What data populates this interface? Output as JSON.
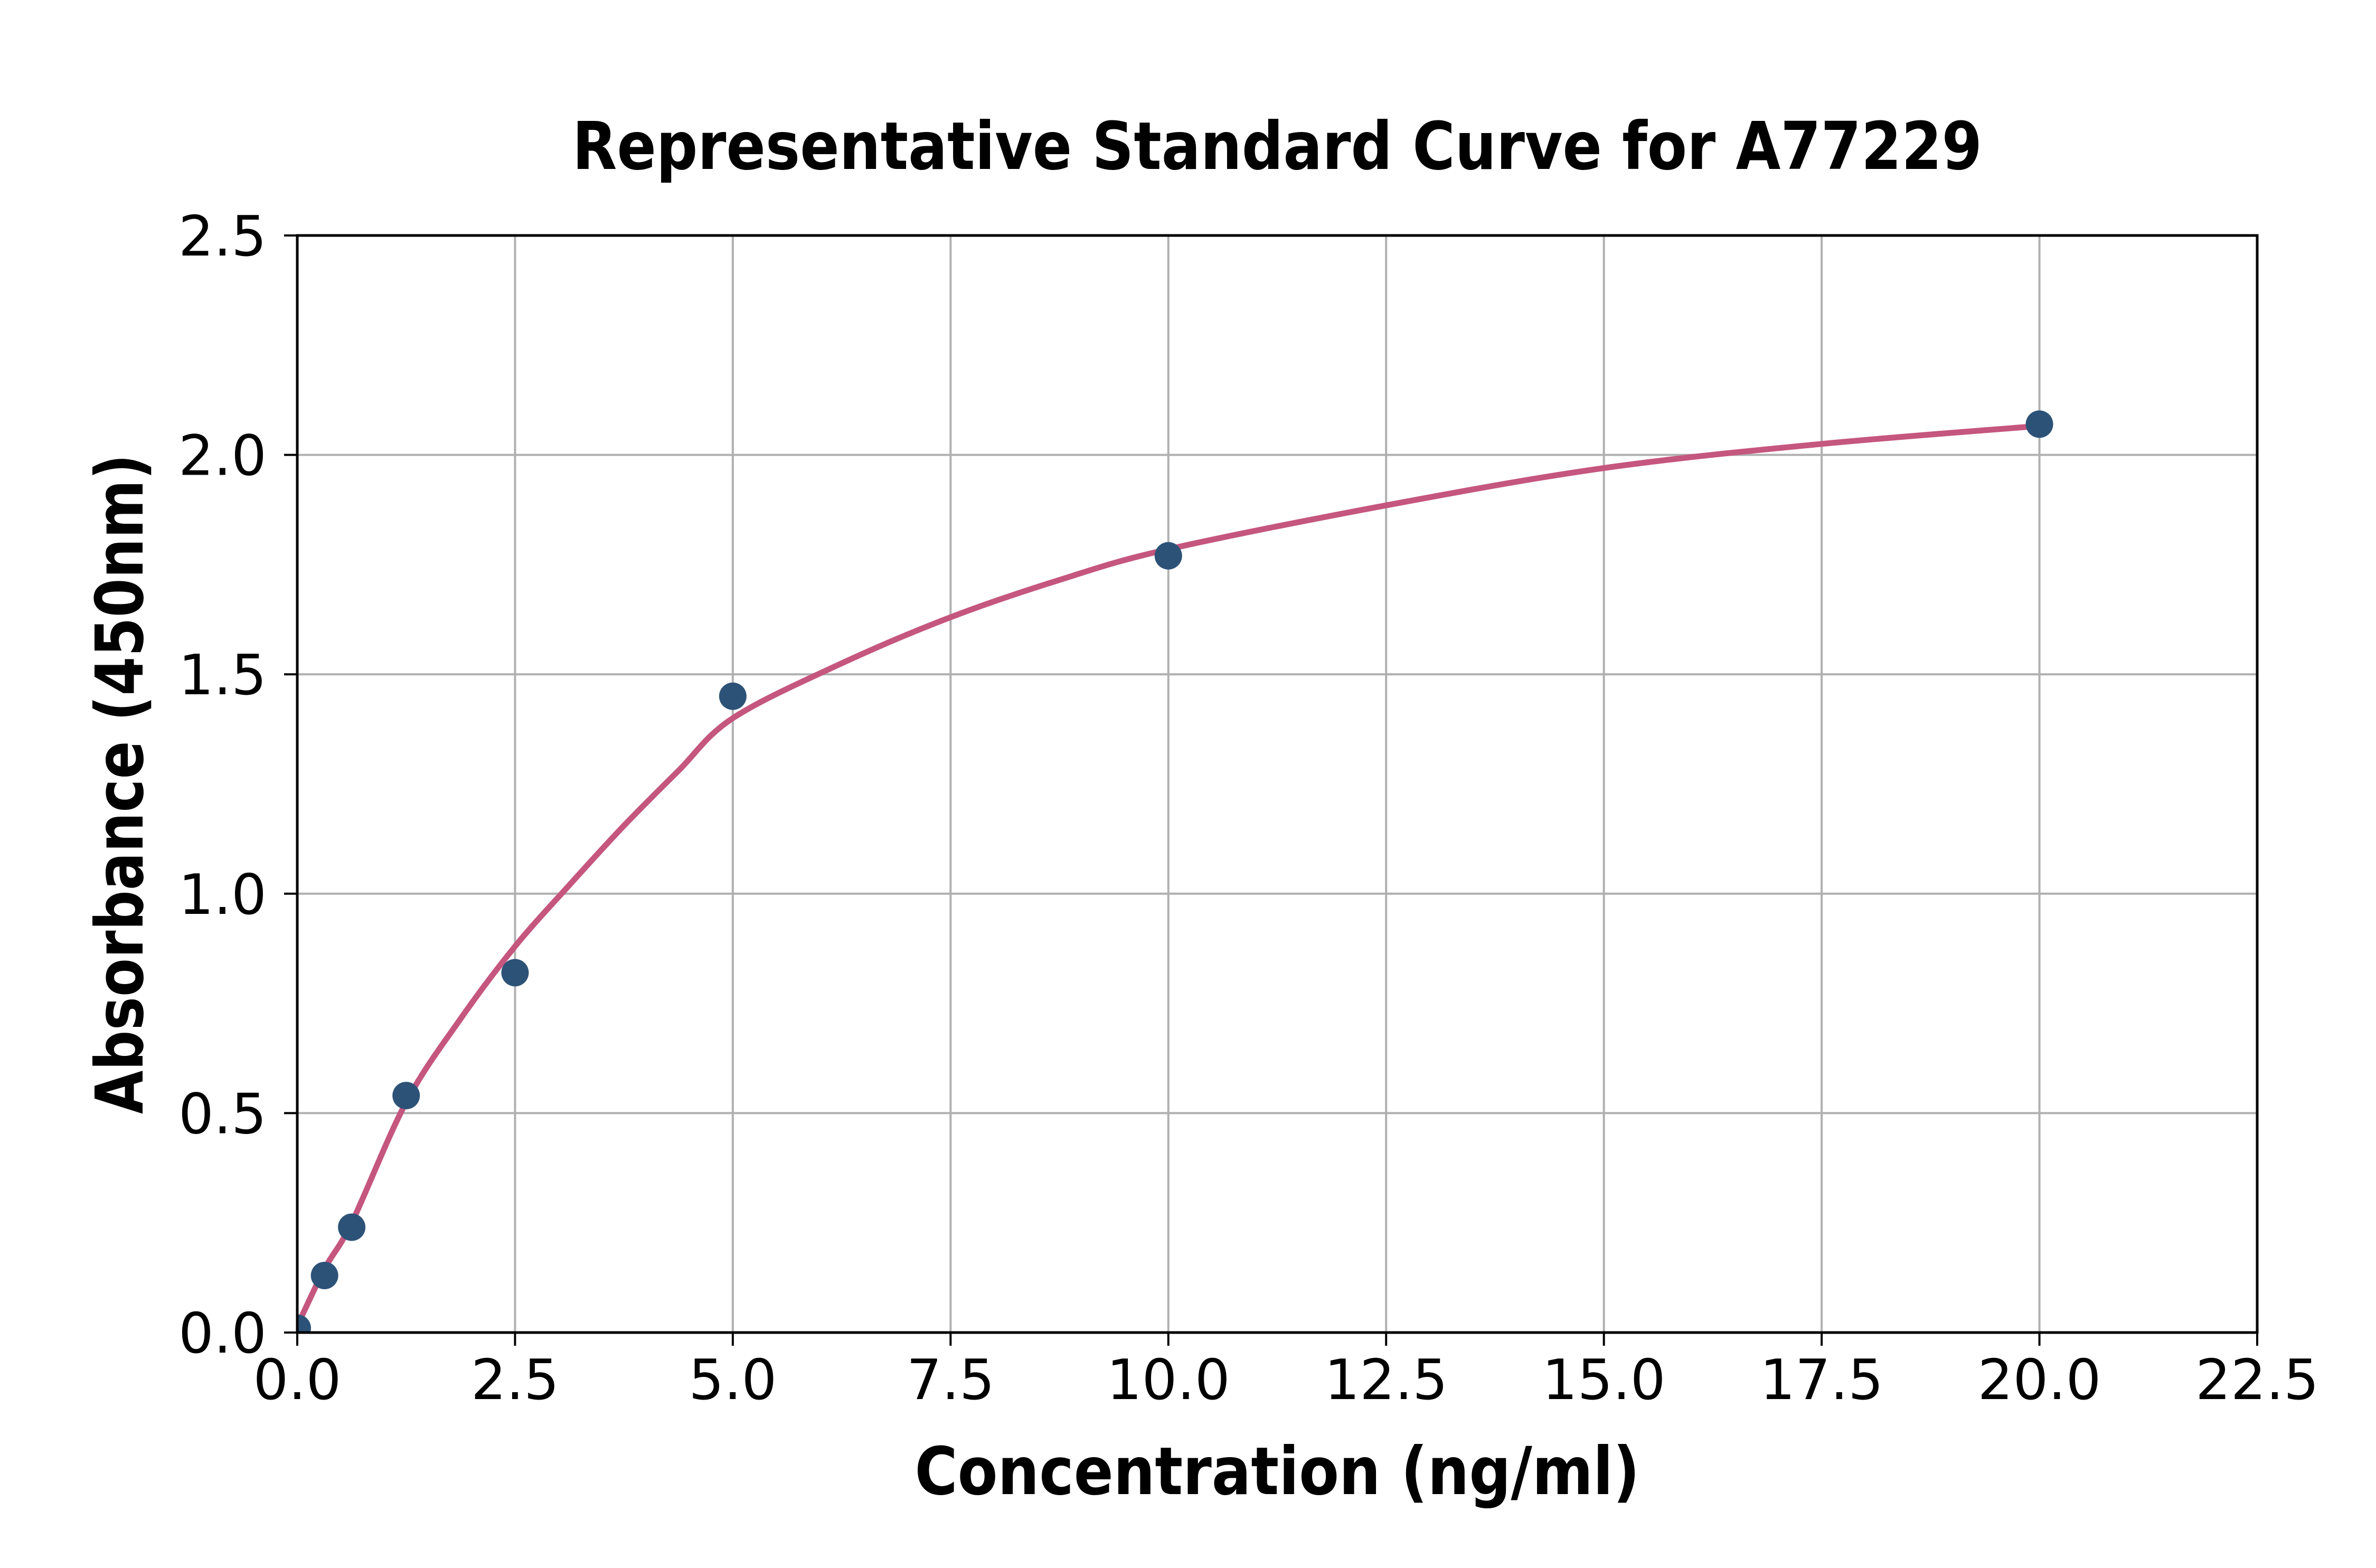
{
  "chart_data": {
    "type": "scatter",
    "title": "Representative Standard Curve for A77229",
    "xlabel": "Concentration (ng/ml)",
    "ylabel": "Absorbance (450nm)",
    "xlim": [
      0,
      22.5
    ],
    "ylim": [
      0,
      2.5
    ],
    "grid": true,
    "legend": "none",
    "xticks": {
      "values": [
        0,
        2.5,
        5,
        7.5,
        10,
        12.5,
        15,
        17.5,
        20,
        22.5
      ],
      "labels": [
        "0.0",
        "2.5",
        "5.0",
        "7.5",
        "10.0",
        "12.5",
        "15.0",
        "17.5",
        "20.0",
        "22.5"
      ]
    },
    "yticks": {
      "values": [
        0,
        0.5,
        1.0,
        1.5,
        2.0,
        2.5
      ],
      "labels": [
        "0.0",
        "0.5",
        "1.0",
        "1.5",
        "2.0",
        "2.5"
      ]
    },
    "series": [
      {
        "name": "standard-points",
        "type": "scatter",
        "color": "#2D5277",
        "x": [
          0,
          0.313,
          0.625,
          1.25,
          2.5,
          5,
          10,
          20
        ],
        "y": [
          0.01,
          0.13,
          0.24,
          0.54,
          0.82,
          1.45,
          1.77,
          2.07
        ]
      },
      {
        "name": "fit-curve",
        "type": "line",
        "color": "#C5567E",
        "x": [
          0,
          0.313,
          0.625,
          1.25,
          1.875,
          2.5,
          3.125,
          3.75,
          4.375,
          5,
          6.25,
          7.5,
          8.75,
          10,
          12.5,
          15,
          17.5,
          20
        ],
        "y": [
          0.015,
          0.145,
          0.25,
          0.525,
          0.715,
          0.88,
          1.02,
          1.155,
          1.28,
          1.4,
          1.525,
          1.63,
          1.715,
          1.785,
          1.885,
          1.97,
          2.025,
          2.066
        ]
      }
    ],
    "colors": {
      "background": "#FFFFFF",
      "grid": "#B0B0B0",
      "axis": "#000000",
      "text": "#000000"
    }
  }
}
